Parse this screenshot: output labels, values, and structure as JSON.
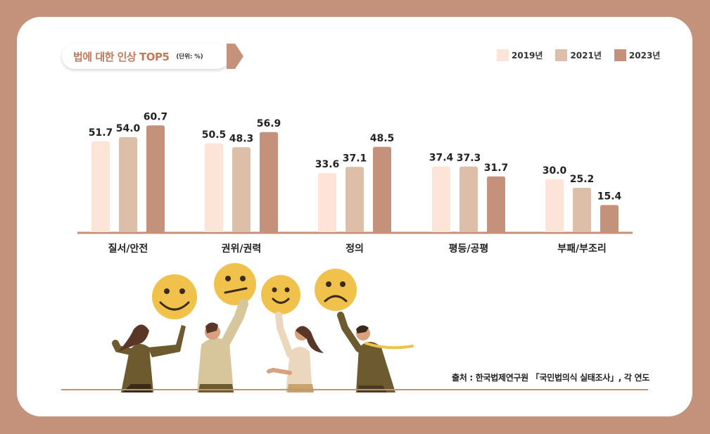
{
  "title": {
    "text": "법에 대한 인상 TOP5",
    "unit": "(단위: %)"
  },
  "colors": {
    "background": "#c4927a",
    "series_2019": "#fce5d8",
    "series_2021": "#dcbea9",
    "series_2023": "#c4927a",
    "title_text": "#c07a5b",
    "face": "#f1c24b"
  },
  "chart_data": {
    "type": "bar",
    "title": "법에 대한 인상 TOP5",
    "unit": "(단위: %)",
    "categories": [
      "질서/안전",
      "권위/권력",
      "정의",
      "평등/공평",
      "부패/부조리"
    ],
    "series": [
      {
        "name": "2019년",
        "values": [
          51.7,
          50.5,
          33.6,
          37.4,
          30.0
        ]
      },
      {
        "name": "2021년",
        "values": [
          54.0,
          48.3,
          37.1,
          37.3,
          25.2
        ]
      },
      {
        "name": "2023년",
        "values": [
          60.7,
          56.9,
          48.5,
          31.7,
          15.4
        ]
      }
    ],
    "value_labels": [
      [
        "51.7",
        "50.5",
        "33.6",
        "37.4",
        "30.0"
      ],
      [
        "54.0",
        "48.3",
        "37.1",
        "37.3",
        "25.2"
      ],
      [
        "60.7",
        "56.9",
        "48.5",
        "31.7",
        "15.4"
      ]
    ],
    "legend_position": "top-right",
    "grid": false,
    "ylim": [
      0,
      100
    ]
  },
  "legend": {
    "items": [
      "2019년",
      "2021년",
      "2023년"
    ]
  },
  "source": {
    "text": "출처 : 한국법제연구원 「국민법의식 실태조사」, 각 연도"
  },
  "illustration": {
    "faces": [
      "smile-face-icon",
      "neutral-face-icon",
      "smile-face-icon",
      "sad-face-icon"
    ]
  }
}
